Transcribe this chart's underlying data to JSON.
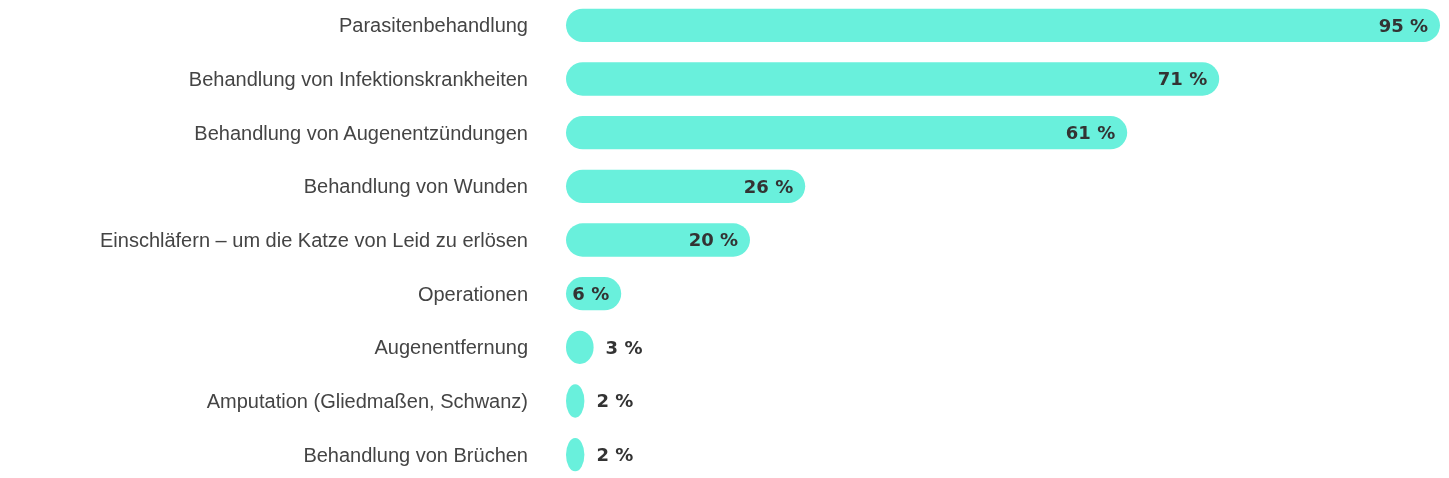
{
  "chart_data": {
    "type": "bar",
    "orientation": "horizontal",
    "categories": [
      "Parasitenbehandlung",
      "Behandlung von Infektionskrankheiten",
      "Behandlung von Augenentzündungen",
      "Behandlung von Wunden",
      "Einschläfern – um die Katze von Leid zu erlösen",
      "Operationen",
      "Augenentfernung",
      "Amputation (Gliedmaßen, Schwanz)",
      "Behandlung von Brüchen"
    ],
    "values": [
      95,
      71,
      61,
      26,
      20,
      6,
      3,
      2,
      2
    ],
    "value_labels": [
      "95 %",
      "71 %",
      "61 %",
      "26 %",
      "20 %",
      "6 %",
      "3 %",
      "2 %",
      "2 %"
    ],
    "color": "#69f0dc"
  }
}
